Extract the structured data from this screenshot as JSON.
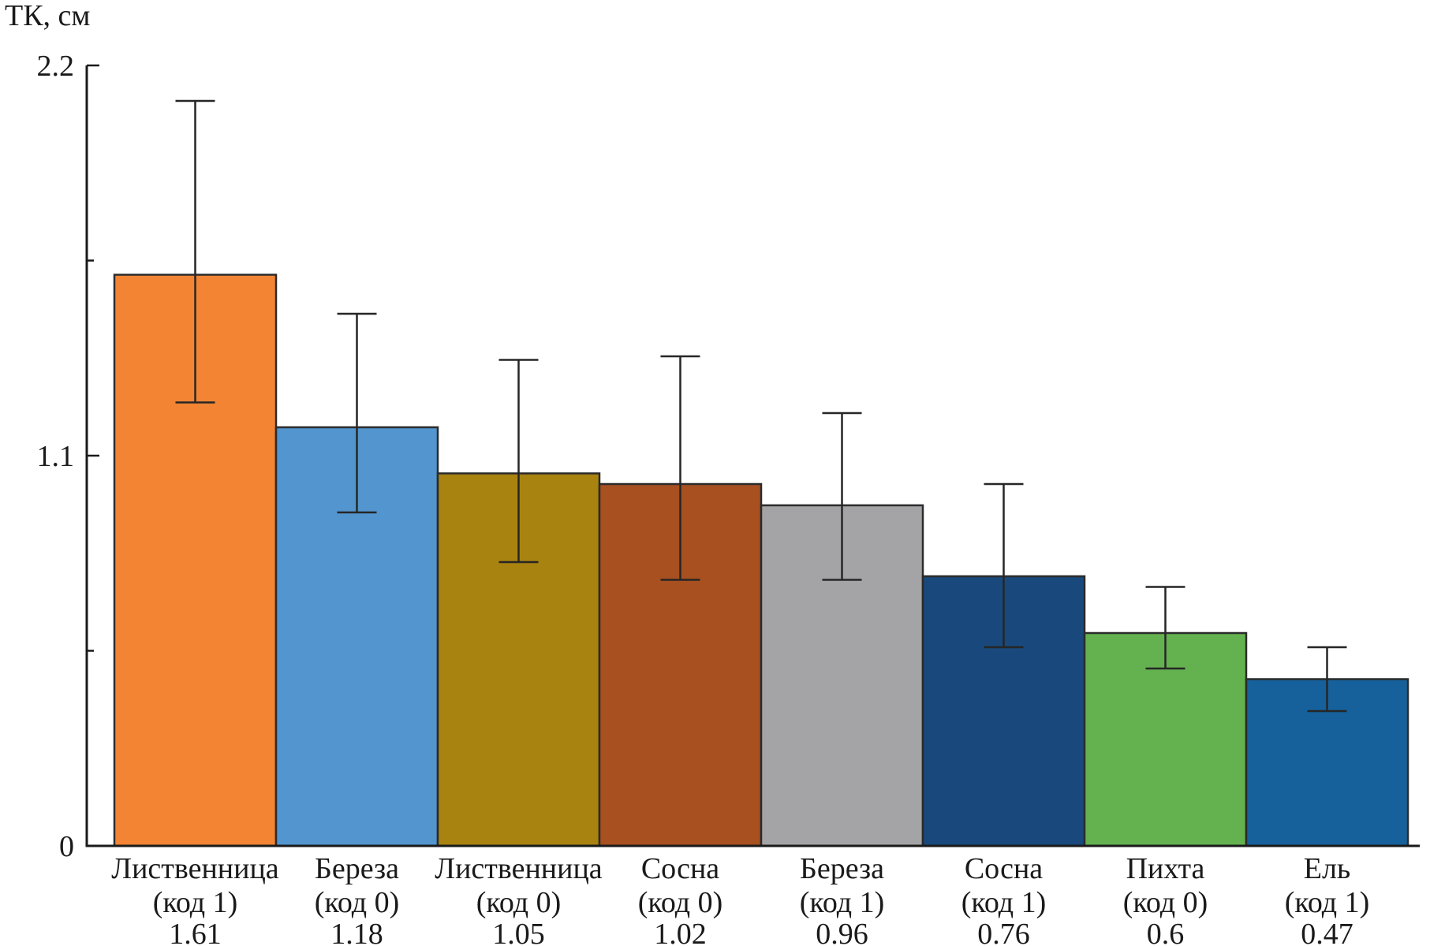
{
  "chart_data": {
    "type": "bar",
    "title": "",
    "ylabel": "ТК, см",
    "xlabel": "",
    "ylim": [
      0,
      2.2
    ],
    "yticks_major": [
      {
        "value": 0,
        "label": "0"
      },
      {
        "value": 1.1,
        "label": "1.1"
      },
      {
        "value": 2.2,
        "label": "2.2"
      }
    ],
    "yticks_minor": [
      0.55,
      1.65
    ],
    "grid": false,
    "legend": "none",
    "error_bars": true,
    "axis_color": "#1a1a1a",
    "bar_border_color": "#2b2b2b",
    "error_bar_color": "#262626",
    "bars": [
      {
        "name": "Лиственница",
        "code": "(код 1)",
        "value_label": "1.61",
        "value": 1.61,
        "err_high": 2.1,
        "err_low": 1.25,
        "color": "#F28433"
      },
      {
        "name": "Береза",
        "code": "(код 0)",
        "value_label": "1.18",
        "value": 1.18,
        "err_high": 1.5,
        "err_low": 0.94,
        "color": "#5295CF"
      },
      {
        "name": "Лиственница",
        "code": "(код 0)",
        "value_label": "1.05",
        "value": 1.05,
        "err_high": 1.37,
        "err_low": 0.8,
        "color": "#A8830F"
      },
      {
        "name": "Сосна",
        "code": "(код 0)",
        "value_label": "1.02",
        "value": 1.02,
        "err_high": 1.38,
        "err_low": 0.75,
        "color": "#A85020"
      },
      {
        "name": "Береза",
        "code": "(код 1)",
        "value_label": "0.96",
        "value": 0.96,
        "err_high": 1.22,
        "err_low": 0.75,
        "color": "#A4A4A6"
      },
      {
        "name": "Сосна",
        "code": "(код 1)",
        "value_label": "0.76",
        "value": 0.76,
        "err_high": 1.02,
        "err_low": 0.56,
        "color": "#19497C"
      },
      {
        "name": "Пихта",
        "code": "(код 0)",
        "value_label": "0.6",
        "value": 0.6,
        "err_high": 0.73,
        "err_low": 0.5,
        "color": "#64B150"
      },
      {
        "name": "Ель",
        "code": "(код 1)",
        "value_label": "0.47",
        "value": 0.47,
        "err_high": 0.56,
        "err_low": 0.38,
        "color": "#16619B"
      }
    ]
  }
}
